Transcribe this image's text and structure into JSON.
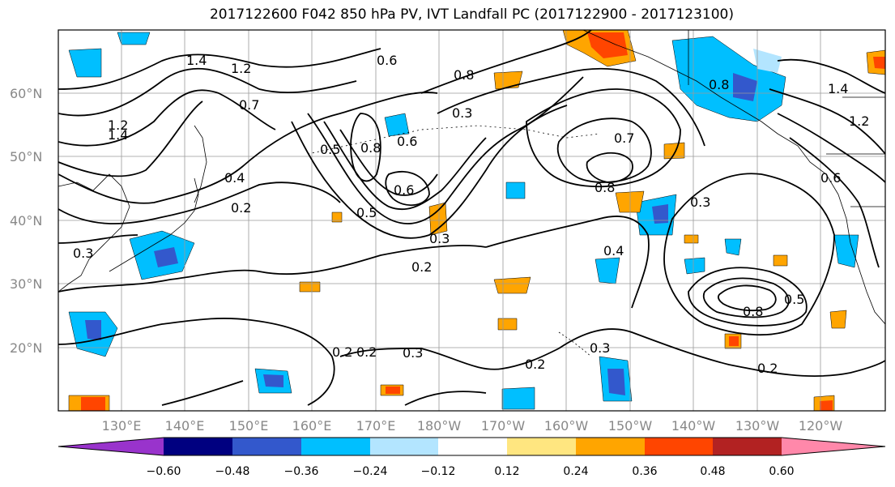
{
  "title": "2017122600 F042 850 hPa PV, IVT Landfall PC (2017122900 - 2017123100)",
  "latitude_labels": [
    "60°N",
    "50°N",
    "40°N",
    "30°N",
    "20°N"
  ],
  "longitude_labels": [
    "130°E",
    "140°E",
    "150°E",
    "160°E",
    "170°E",
    "180°W",
    "170°W",
    "160°W",
    "150°W",
    "140°W",
    "130°W",
    "120°W"
  ],
  "colorbar": {
    "ticks": [
      "−0.60",
      "−0.48",
      "−0.36",
      "−0.24",
      "−0.12",
      "0.12",
      "0.24",
      "0.36",
      "0.48",
      "0.60"
    ],
    "colors": [
      "#9933cc",
      "#000080",
      "#3358cc",
      "#00bfff",
      "#b3e5ff",
      "#ffffff",
      "#ffe680",
      "#ffa500",
      "#ff4500",
      "#b22222",
      "#ff88aa"
    ]
  },
  "contour_labels": [
    "1.4",
    "1.2",
    "0.6",
    "0.8",
    "0.3",
    "0.7",
    "0.4",
    "0.2",
    "0.5",
    "0.6",
    "0.8",
    "0.5",
    "0.3",
    "0.2",
    "0.6",
    "0.8",
    "0.7",
    "0.3",
    "0.2",
    "0.2",
    "0.3",
    "0.2",
    "0.3",
    "0.8",
    "0.5",
    "0.4",
    "0.2",
    "1.4",
    "1.2",
    "0.8",
    "0.6",
    "1.2",
    "1.4",
    "0.3"
  ]
}
